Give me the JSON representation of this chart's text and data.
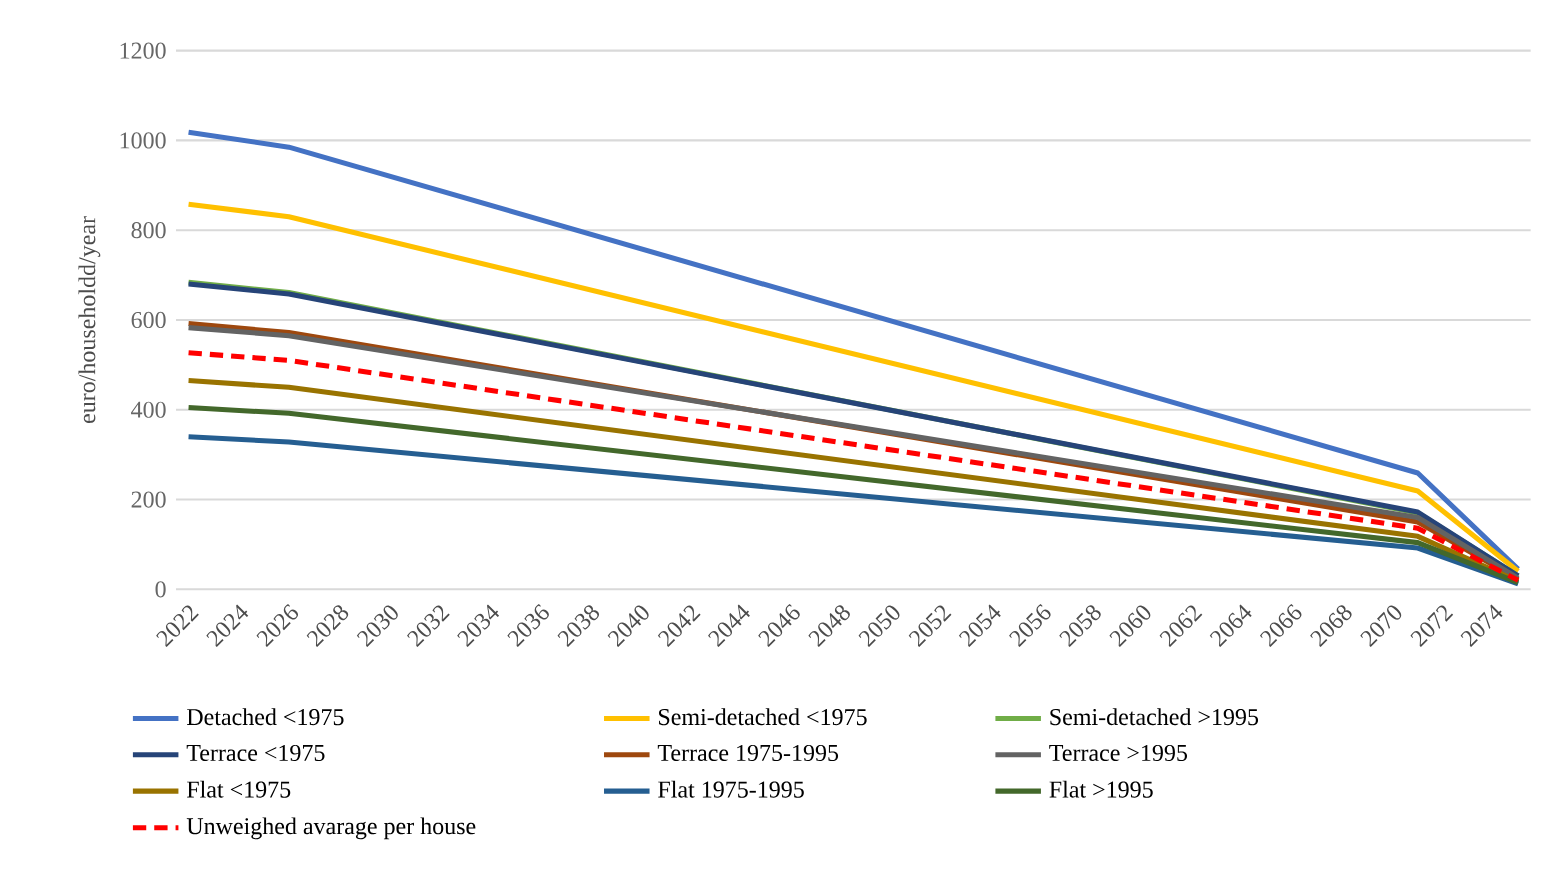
{
  "chart_data": {
    "type": "line",
    "ylabel": "euro/householdd/year",
    "x": [
      2022,
      2026,
      2071,
      2075
    ],
    "xlim": [
      2021.5,
      2075.5
    ],
    "xticks": [
      2022,
      2024,
      2026,
      2028,
      2030,
      2032,
      2034,
      2036,
      2038,
      2040,
      2042,
      2044,
      2046,
      2048,
      2050,
      2052,
      2054,
      2056,
      2058,
      2060,
      2062,
      2064,
      2066,
      2068,
      2070,
      2072,
      2074
    ],
    "ylim": [
      0,
      1200
    ],
    "yticks": [
      0,
      200,
      400,
      600,
      800,
      1000,
      1200
    ],
    "grid": "y",
    "legend": "bottom",
    "marker": "none",
    "series": [
      {
        "name": "Detached <1975",
        "color": "#4472c4",
        "values": [
          1018,
          985,
          259,
          45
        ]
      },
      {
        "name": "Semi-detached <1975",
        "color": "#ffc000",
        "values": [
          858,
          830,
          219,
          40
        ]
      },
      {
        "name": "Semi-detached >1995",
        "color": "#70ad47",
        "values": [
          684,
          661,
          170,
          30
        ]
      },
      {
        "name": "Terrace <1975",
        "color": "#264478",
        "values": [
          680,
          658,
          172,
          30
        ]
      },
      {
        "name": "Terrace 1975-1995",
        "color": "#9e480e",
        "values": [
          592,
          572,
          150,
          22
        ]
      },
      {
        "name": "Terrace >1995",
        "color": "#636363",
        "values": [
          583,
          565,
          160,
          25
        ]
      },
      {
        "name": "Flat <1975",
        "color": "#997300",
        "values": [
          465,
          450,
          118,
          18
        ]
      },
      {
        "name": "Flat 1975-1995",
        "color": "#255e91",
        "values": [
          340,
          328,
          92,
          12
        ]
      },
      {
        "name": "Flat >1995",
        "color": "#43682b",
        "values": [
          405,
          392,
          104,
          15
        ]
      },
      {
        "name": "Unweighed avarage per house",
        "color": "#ff0000",
        "line_style": "dashed",
        "values": [
          527,
          510,
          136,
          20
        ]
      }
    ]
  }
}
